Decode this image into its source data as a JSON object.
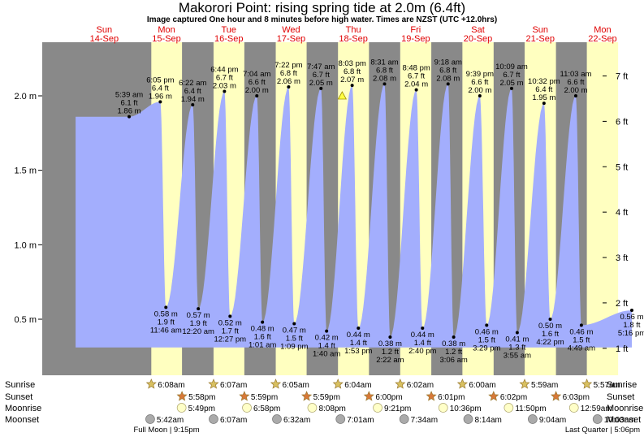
{
  "chart_data": {
    "type": "area",
    "title": "Makorori Point: rising  spring tide at 2.0m (6.4ft)",
    "subtitle": "Image captured One hour and 8 minutes before high water. Times are NZST (UTC +12.0hrs)",
    "day_headers": [
      {
        "dow": "Sun",
        "date": "14-Sep",
        "x_days": 0.5
      },
      {
        "dow": "Mon",
        "date": "15-Sep",
        "x_days": 1.5
      },
      {
        "dow": "Tue",
        "date": "16-Sep",
        "x_days": 2.5
      },
      {
        "dow": "Wed",
        "date": "17-Sep",
        "x_days": 3.5
      },
      {
        "dow": "Thu",
        "date": "18-Sep",
        "x_days": 4.5
      },
      {
        "dow": "Fri",
        "date": "19-Sep",
        "x_days": 5.5
      },
      {
        "dow": "Sat",
        "date": "20-Sep",
        "x_days": 6.5
      },
      {
        "dow": "Sun",
        "date": "21-Sep",
        "x_days": 7.5
      },
      {
        "dow": "Mon",
        "date": "22-Sep",
        "x_days": 8.5
      }
    ],
    "y_left": {
      "unit": "m",
      "ticks": [
        {
          "v": 0.5,
          "label": "0.5 m"
        },
        {
          "v": 1.0,
          "label": "1.0 m"
        },
        {
          "v": 1.5,
          "label": "1.5 m"
        },
        {
          "v": 2.0,
          "label": "2.0 m"
        }
      ],
      "range": [
        0.2,
        2.32
      ]
    },
    "y_right": {
      "unit": "ft",
      "ticks": [
        {
          "v": 0.3048,
          "label": "1 ft"
        },
        {
          "v": 0.6096,
          "label": "2 ft"
        },
        {
          "v": 0.9144,
          "label": "3 ft"
        },
        {
          "v": 1.2192,
          "label": "4 ft"
        },
        {
          "v": 1.524,
          "label": "5 ft"
        },
        {
          "v": 1.8288,
          "label": "6 ft"
        },
        {
          "v": 2.1336,
          "label": "7 ft"
        }
      ]
    },
    "daylight": [
      {
        "rise": 1.2556,
        "set": 1.7486
      },
      {
        "rise": 2.2549,
        "set": 2.7493
      },
      {
        "rise": 3.2535,
        "set": 3.7493
      },
      {
        "rise": 4.2528,
        "set": 4.75
      },
      {
        "rise": 5.2514,
        "set": 5.7507
      },
      {
        "rise": 6.25,
        "set": 6.7514
      },
      {
        "rise": 7.2493,
        "set": 7.7521
      },
      {
        "rise": 8.2479,
        "set": 8.75
      }
    ],
    "tide_start": {
      "x": 0.04,
      "y": 1.86
    },
    "tide_end": {
      "x": 8.97,
      "y": 0.54
    },
    "events": [
      {
        "type": "high",
        "x": 0.9,
        "y": 1.86,
        "lines": [
          "5:39 am",
          "6.1 ft",
          "1.86 m"
        ]
      },
      {
        "type": "low",
        "x": 1.49,
        "y": 0.58,
        "lines": [
          "0.58 m",
          "1.9 ft",
          "11:46 am"
        ]
      },
      {
        "type": "high",
        "x": 1.4,
        "y": 1.96,
        "lines": [
          "6:05 pm",
          "6.4 ft",
          "1.96 m"
        ]
      },
      {
        "type": "low",
        "x": 2.01,
        "y": 0.57,
        "lines": [
          "0.57 m",
          "1.9 ft",
          "12:20 am"
        ]
      },
      {
        "type": "high",
        "x": 1.92,
        "y": 1.94,
        "lines": [
          "6:22 am",
          "6.4 ft",
          "1.94 m"
        ]
      },
      {
        "type": "low",
        "x": 2.52,
        "y": 0.52,
        "lines": [
          "0.52 m",
          "1.7 ft",
          "12:27 pm"
        ]
      },
      {
        "type": "high",
        "x": 2.43,
        "y": 2.03,
        "lines": [
          "6:44 pm",
          "6.7 ft",
          "2.03 m"
        ]
      },
      {
        "type": "low",
        "x": 3.04,
        "y": 0.48,
        "lines": [
          "0.48 m",
          "1.6 ft",
          "1:01 am"
        ]
      },
      {
        "type": "high",
        "x": 2.95,
        "y": 2.0,
        "lines": [
          "7:04 am",
          "6.6 ft",
          "2.00 m"
        ]
      },
      {
        "type": "low",
        "x": 3.55,
        "y": 0.47,
        "lines": [
          "0.47 m",
          "1.5 ft",
          "1:09 pm"
        ]
      },
      {
        "type": "high",
        "x": 3.46,
        "y": 2.06,
        "lines": [
          "7:22 pm",
          "6.8 ft",
          "2.06 m"
        ]
      },
      {
        "type": "low",
        "x": 4.07,
        "y": 0.42,
        "lines": [
          "0.42 m",
          "1.4 ft",
          "1:40 am"
        ]
      },
      {
        "type": "high",
        "x": 3.98,
        "y": 2.05,
        "lines": [
          "7:47 am",
          "6.7 ft",
          "2.05 m"
        ]
      },
      {
        "type": "low",
        "x": 4.58,
        "y": 0.44,
        "lines": [
          "0.44 m",
          "1.4 ft",
          "1:53 pm"
        ]
      },
      {
        "type": "high",
        "x": 4.48,
        "y": 2.07,
        "lines": [
          "8:03 pm",
          "6.8 ft",
          "2.07 m"
        ]
      },
      {
        "type": "low",
        "x": 5.09,
        "y": 0.38,
        "lines": [
          "0.38 m",
          "1.2 ft",
          "2:22 am"
        ]
      },
      {
        "type": "high",
        "x": 5.0,
        "y": 2.08,
        "lines": [
          "8:31 am",
          "6.8 ft",
          "2.08 m"
        ]
      },
      {
        "type": "low",
        "x": 5.61,
        "y": 0.44,
        "lines": [
          "0.44 m",
          "1.4 ft",
          "2:40 pm"
        ]
      },
      {
        "type": "high",
        "x": 5.51,
        "y": 2.04,
        "lines": [
          "8:48 pm",
          "6.7 ft",
          "2.04 m"
        ]
      },
      {
        "type": "low",
        "x": 6.11,
        "y": 0.38,
        "lines": [
          "0.38 m",
          "1.2 ft",
          "3:06 am"
        ]
      },
      {
        "type": "high",
        "x": 6.02,
        "y": 2.08,
        "lines": [
          "9:18 am",
          "6.8 ft",
          "2.08 m"
        ]
      },
      {
        "type": "low",
        "x": 6.64,
        "y": 0.46,
        "lines": [
          "0.46 m",
          "1.5 ft",
          "3:29 pm"
        ]
      },
      {
        "type": "high",
        "x": 6.53,
        "y": 2.0,
        "lines": [
          "9:39 pm",
          "6.6 ft",
          "2.00 m"
        ]
      },
      {
        "type": "low",
        "x": 7.13,
        "y": 0.41,
        "lines": [
          "0.41 m",
          "1.3 ft",
          "3:55 am"
        ]
      },
      {
        "type": "high",
        "x": 7.04,
        "y": 2.05,
        "lines": [
          "10:09 am",
          "6.7 ft",
          "2.05 m"
        ]
      },
      {
        "type": "low",
        "x": 7.66,
        "y": 0.5,
        "lines": [
          "0.50 m",
          "1.6 ft",
          "4:22 pm"
        ]
      },
      {
        "type": "high",
        "x": 7.56,
        "y": 1.95,
        "lines": [
          "10:32 pm",
          "6.4 ft",
          "1.95 m"
        ]
      },
      {
        "type": "low",
        "x": 8.16,
        "y": 0.46,
        "lines": [
          "0.46 m",
          "1.5 ft",
          "4:49 am"
        ]
      },
      {
        "type": "high",
        "x": 8.07,
        "y": 2.0,
        "lines": [
          "11:03 am",
          "6.6 ft",
          "2.00 m"
        ]
      },
      {
        "type": "low",
        "x": 8.97,
        "y": 0.56,
        "lines": [
          "0.56 m",
          "1.8 ft",
          "5:16 pm"
        ]
      }
    ],
    "current_marker": {
      "x": 4.32,
      "y": 2.0
    }
  },
  "almanac": {
    "row_labels": {
      "sunrise": "Sunrise",
      "sunset": "Sunset",
      "moonrise": "Moonrise",
      "moonset": "Moonset"
    },
    "sunrise": [
      {
        "x": 1.2556,
        "t": "6:08am"
      },
      {
        "x": 2.2549,
        "t": "6:07am"
      },
      {
        "x": 3.2535,
        "t": "6:05am"
      },
      {
        "x": 4.2528,
        "t": "6:04am"
      },
      {
        "x": 5.2514,
        "t": "6:02am"
      },
      {
        "x": 6.25,
        "t": "6:00am"
      },
      {
        "x": 7.2493,
        "t": "5:59am"
      },
      {
        "x": 8.2479,
        "t": "5:57am"
      }
    ],
    "sunset": [
      {
        "x": 1.7486,
        "t": "5:58pm"
      },
      {
        "x": 2.7493,
        "t": "5:59pm"
      },
      {
        "x": 3.7493,
        "t": "5:59pm"
      },
      {
        "x": 4.75,
        "t": "6:00pm"
      },
      {
        "x": 5.7507,
        "t": "6:01pm"
      },
      {
        "x": 6.7514,
        "t": "6:02pm"
      },
      {
        "x": 7.7521,
        "t": "6:03pm"
      }
    ],
    "moonrise": [
      {
        "x": 1.7424,
        "t": "5:49pm"
      },
      {
        "x": 2.7903,
        "t": "6:58pm"
      },
      {
        "x": 3.8389,
        "t": "8:08pm"
      },
      {
        "x": 4.8896,
        "t": "9:21pm"
      },
      {
        "x": 5.9417,
        "t": "10:36pm"
      },
      {
        "x": 6.9931,
        "t": "11:50pm"
      },
      {
        "x": 8.041,
        "t": "12:59am"
      }
    ],
    "moonset": [
      {
        "x": 1.2375,
        "t": "5:42am"
      },
      {
        "x": 2.2549,
        "t": "6:07am"
      },
      {
        "x": 3.2722,
        "t": "6:32am"
      },
      {
        "x": 4.2924,
        "t": "7:01am"
      },
      {
        "x": 5.3153,
        "t": "7:34am"
      },
      {
        "x": 6.3431,
        "t": "8:14am"
      },
      {
        "x": 7.3778,
        "t": "9:04am"
      },
      {
        "x": 8.4188,
        "t": "10:03am"
      }
    ],
    "moon_phases": [
      {
        "x": 1.5,
        "label": "Full Moon | 9:15pm"
      },
      {
        "x": 8.5,
        "label": "Last Quarter | 5:06pm"
      }
    ]
  },
  "colors": {
    "night": "#898989",
    "day": "#ffffc0",
    "water": "#a3aefd",
    "day_header": "#e00000",
    "star": "#d8c060",
    "sunset_star": "#d87838",
    "moonrise": "#ffffc8",
    "moonset": "#aaaaaa",
    "marker": "#ffff40"
  }
}
